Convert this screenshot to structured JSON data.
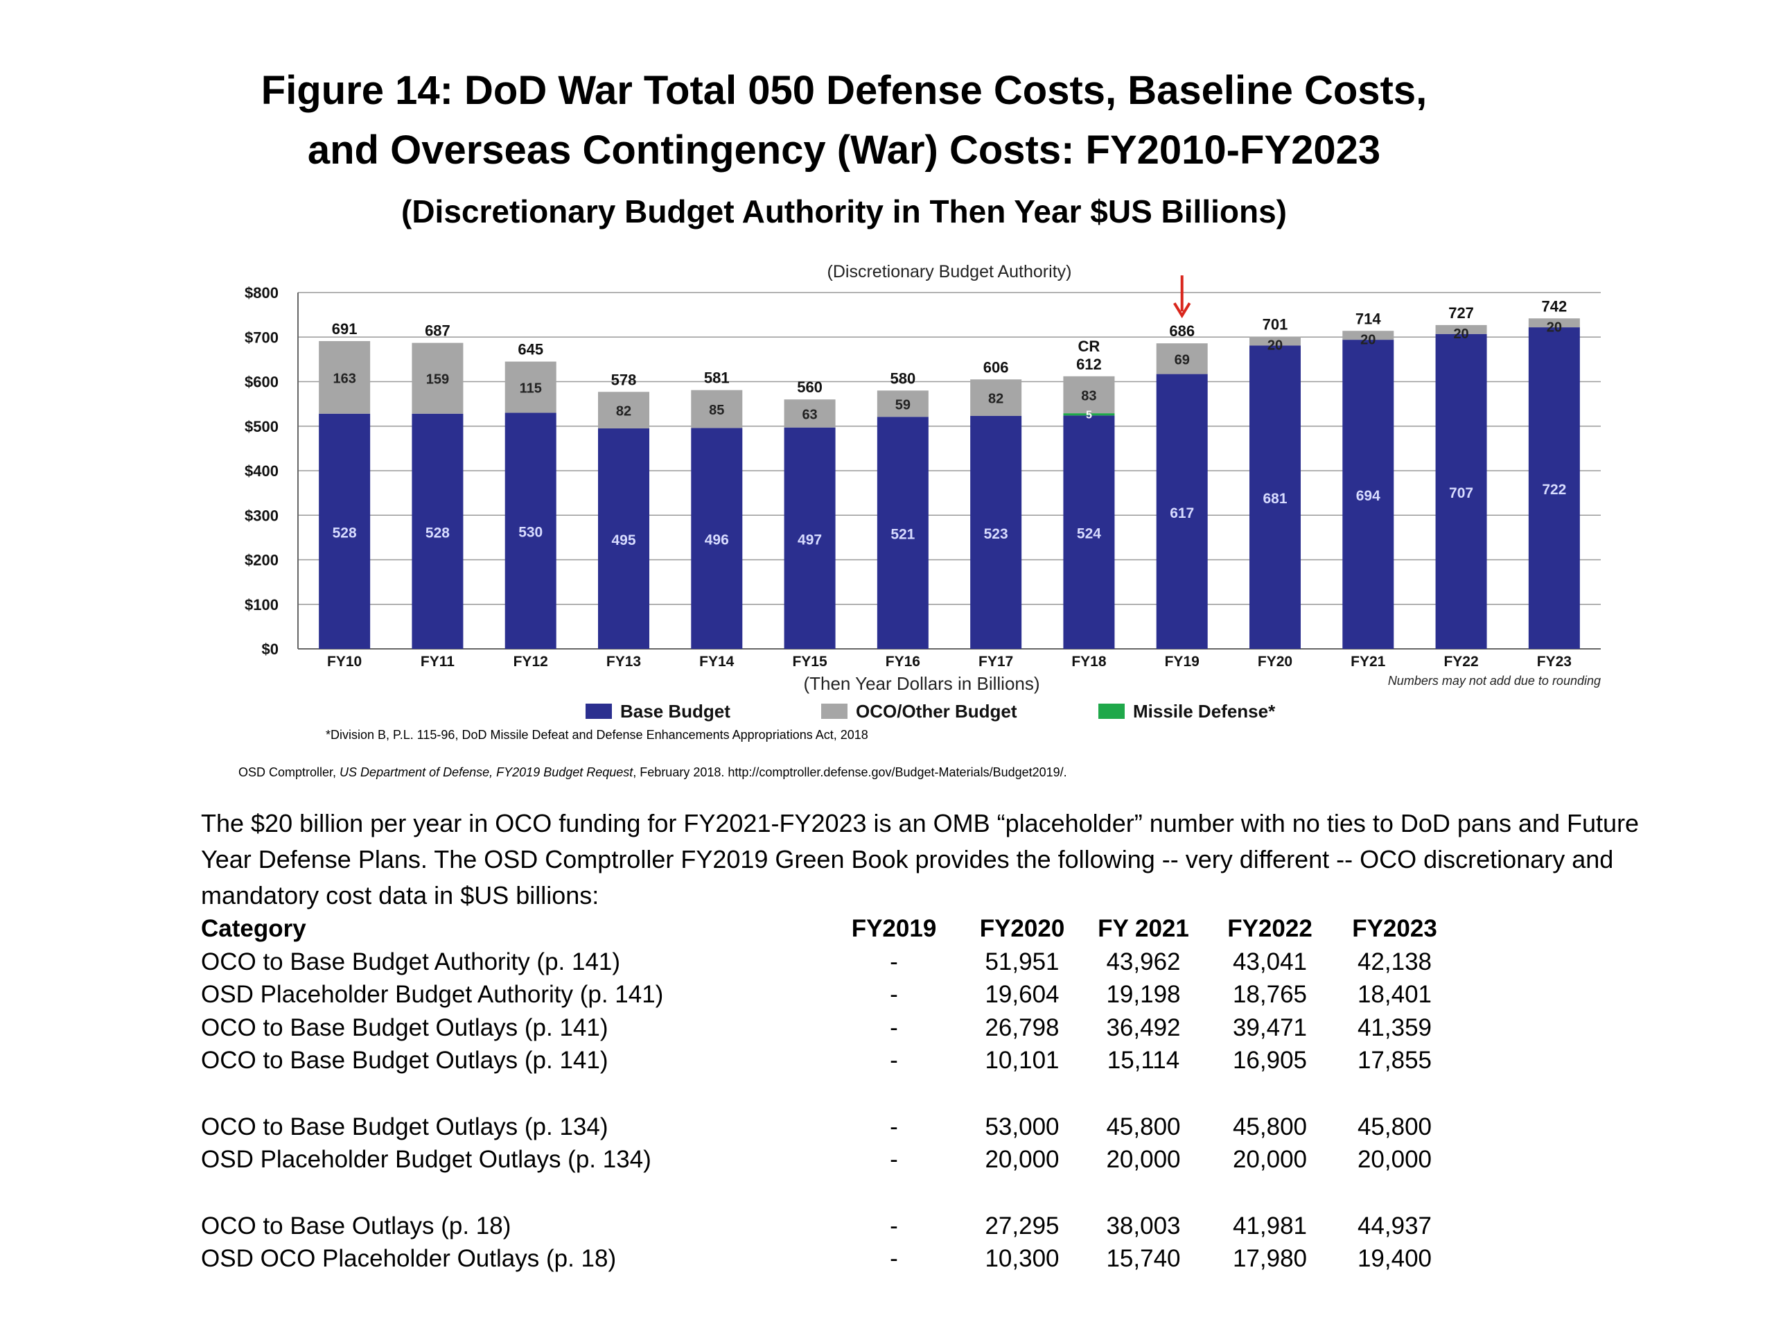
{
  "figure": {
    "title_line1": "Figure 14: DoD  War Total 050 Defense Costs, Baseline Costs,",
    "title_line2": "and Overseas Contingency (War) Costs: FY2010-FY2023",
    "title_line3": "(Discretionary Budget Authority in Then Year $US Billions)"
  },
  "chart_data": {
    "type": "bar",
    "stacked": true,
    "title": "(Discretionary Budget Authority)",
    "xlabel": "(Then Year Dollars in Billions)",
    "ylabel": "",
    "ylim": [
      0,
      800
    ],
    "yticks": [
      "$0",
      "$100",
      "$200",
      "$300",
      "$400",
      "$500",
      "$600",
      "$700",
      "$800"
    ],
    "categories": [
      "FY10",
      "FY11",
      "FY12",
      "FY13",
      "FY14",
      "FY15",
      "FY16",
      "FY17",
      "FY18",
      "FY19",
      "FY20",
      "FY21",
      "FY22",
      "FY23"
    ],
    "series": [
      {
        "name": "Base Budget",
        "color": "#2b2f8f",
        "values": [
          528,
          528,
          530,
          495,
          496,
          497,
          521,
          523,
          524,
          617,
          681,
          694,
          707,
          722
        ]
      },
      {
        "name": "Missile Defense*",
        "color": "#1fa84a",
        "values": [
          0,
          0,
          0,
          0,
          0,
          0,
          0,
          0,
          5,
          0,
          0,
          0,
          0,
          0
        ]
      },
      {
        "name": "OCO/Other  Budget",
        "color": "#a6a6a6",
        "values": [
          163,
          159,
          115,
          82,
          85,
          63,
          59,
          82,
          83,
          69,
          20,
          20,
          20,
          20
        ]
      }
    ],
    "segment_labels": {
      "Base Budget": [
        "528",
        "528",
        "530",
        "495",
        "496",
        "497",
        "521",
        "523",
        "524",
        "617",
        "681",
        "694",
        "707",
        "722"
      ],
      "Missile Defense*": [
        "",
        "",
        "",
        "",
        "",
        "",
        "",
        "",
        "5",
        "",
        "",
        "",
        "",
        ""
      ],
      "OCO/Other  Budget": [
        "163",
        "159",
        "115",
        "82",
        "85",
        "63",
        "59",
        "82",
        "83",
        "69",
        "20",
        "20",
        "20",
        "20"
      ]
    },
    "totals": [
      "691",
      "687",
      "645",
      "578",
      "581",
      "560",
      "580",
      "606",
      "612",
      "686",
      "701",
      "714",
      "727",
      "742"
    ],
    "annotations": {
      "cr_label": "CR",
      "cr_category": "FY18",
      "arrow_category": "FY19",
      "arrow_color": "#d9261c"
    },
    "rounding_note": "Numbers may not add due to rounding",
    "grid": true,
    "legend_placement": "bottom"
  },
  "footnote": "*Division B, P.L. 115-96, DoD Missile Defeat and Defense Enhancements Appropriations Act, 2018",
  "source": {
    "prefix": "OSD Comptroller, ",
    "italic": "US Department of Defense, FY2019 Budget Request",
    "suffix": ", February 2018. http://comptroller.defense.gov/Budget-Materials/Budget2019/."
  },
  "paragraph": "The $20 billion per year in OCO funding for FY2021-FY2023 is an OMB “placeholder” number with no ties to DoD pans and Future Year Defense Plans. The OSD Comptroller FY2019 Green Book provides the following -- very different -- OCO discretionary and mandatory cost data in $US billions:",
  "table": {
    "headers": [
      "Category",
      "FY2019",
      "FY2020",
      "FY 2021",
      "FY2022",
      "FY2023"
    ],
    "rows": [
      [
        "OCO to Base Budget Authority (p. 141)",
        "-",
        "51,951",
        "43,962",
        "43,041",
        "42,138"
      ],
      [
        "OSD Placeholder Budget Authority (p. 141)",
        "-",
        "19,604",
        "19,198",
        "18,765",
        "18,401"
      ],
      [
        "OCO to Base Budget Outlays (p. 141)",
        "-",
        "26,798",
        "36,492",
        "39,471",
        "41,359"
      ],
      [
        "OCO to Base Budget Outlays (p. 141)",
        "-",
        "10,101",
        "15,114",
        "16,905",
        "17,855"
      ],
      [
        "OCO to Base Budget Outlays (p. 134)",
        "-",
        "53,000",
        "45,800",
        "45,800",
        "45,800"
      ],
      [
        "OSD Placeholder Budget Outlays (p. 134)",
        "-",
        "20,000",
        "20,000",
        "20,000",
        "20,000"
      ],
      [
        "OCO to Base Outlays (p. 18)",
        "-",
        "27,295",
        "38,003",
        "41,981",
        "44,937"
      ],
      [
        "OSD OCO Placeholder Outlays (p. 18)",
        "-",
        "10,300",
        "15,740",
        "17,980",
        "19,400"
      ]
    ]
  }
}
